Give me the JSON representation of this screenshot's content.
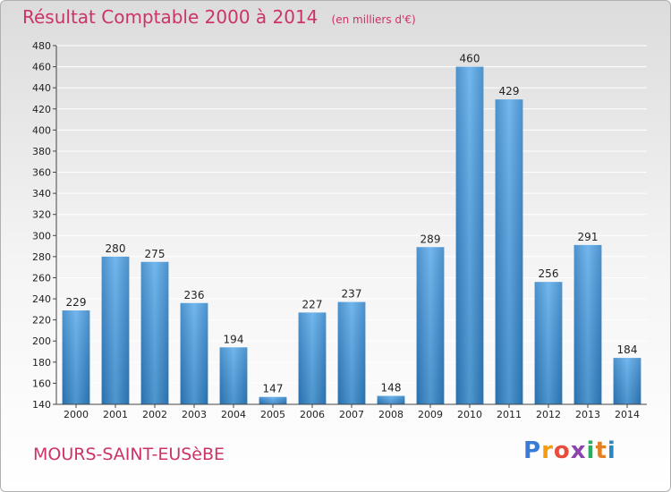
{
  "header": {
    "title": "Résultat Comptable 2000 à 2014",
    "unit": "(en milliers d'€)"
  },
  "commune": "MOURS-SAINT-EUSèBE",
  "logo": {
    "letters": [
      "P",
      "r",
      "o",
      "x",
      "i",
      "t",
      "i"
    ],
    "colors": [
      "#3a7bd5",
      "#f39c12",
      "#e74c3c",
      "#8e44ad",
      "#27ae60",
      "#e67e22",
      "#2e86c1"
    ]
  },
  "chart_data": {
    "type": "bar",
    "title": "Résultat Comptable 2000 à 2014",
    "subtitle": "(en milliers d'€)",
    "categories": [
      "2000",
      "2001",
      "2002",
      "2003",
      "2004",
      "2005",
      "2006",
      "2007",
      "2008",
      "2009",
      "2010",
      "2011",
      "2012",
      "2013",
      "2014"
    ],
    "values": [
      229,
      280,
      275,
      236,
      194,
      147,
      227,
      237,
      148,
      289,
      460,
      429,
      256,
      291,
      184
    ],
    "ylim": [
      140,
      480
    ],
    "yticks": [
      140,
      160,
      180,
      200,
      220,
      240,
      260,
      280,
      300,
      320,
      340,
      360,
      380,
      400,
      420,
      440,
      460,
      480
    ],
    "grid": true,
    "bar_color": "#3d8fd6",
    "legend": "none"
  }
}
